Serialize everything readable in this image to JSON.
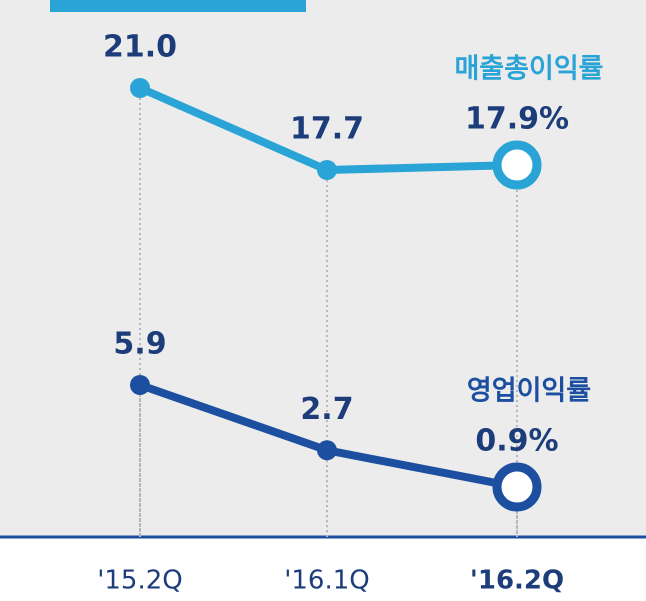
{
  "chart_data": {
    "type": "line",
    "categories": [
      "'15.2Q",
      "'16.1Q",
      "'16.2Q"
    ],
    "series": [
      {
        "name": "매출총이익률",
        "color": "#2aa3d6",
        "values": [
          21.0,
          17.7,
          17.9
        ],
        "value_labels": [
          "21.0",
          "17.7",
          "17.9%"
        ]
      },
      {
        "name": "영업이익률",
        "color": "#1c4fa0",
        "values": [
          5.9,
          2.7,
          0.9
        ],
        "value_labels": [
          "5.9",
          "2.7",
          "0.9%"
        ]
      }
    ]
  }
}
